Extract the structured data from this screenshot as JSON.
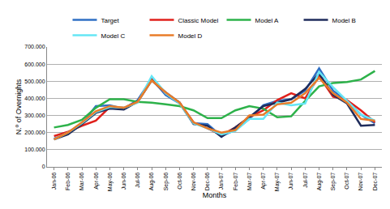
{
  "chart_data": {
    "type": "line",
    "x_label": "Months",
    "y_label": "N.º of Overnights",
    "categories": [
      "Jan-06",
      "Feb-06",
      "Mar-06",
      "Apr-06",
      "May-06",
      "Jun-06",
      "Jul-06",
      "Aug-06",
      "Sep-06",
      "Oct-06",
      "Nov-06",
      "Dec-06",
      "Jan-07",
      "Feb-07",
      "Mar-07",
      "Apr-07",
      "May-07",
      "Jun-07",
      "Jul-07",
      "Aug-07",
      "Sep-07",
      "Oct-07",
      "Nov-07",
      "Dec-07"
    ],
    "series": [
      {
        "name": "Target",
        "color": "#2f6fc4",
        "values": [
          165000,
          195000,
          250000,
          355000,
          360000,
          340000,
          390000,
          515000,
          420000,
          370000,
          255000,
          250000,
          180000,
          215000,
          280000,
          360000,
          385000,
          395000,
          445000,
          575000,
          445000,
          385000,
          305000,
          255000
        ]
      },
      {
        "name": "Classic Model",
        "color": "#e0201b",
        "values": [
          180000,
          205000,
          240000,
          270000,
          350000,
          345000,
          380000,
          510000,
          430000,
          375000,
          260000,
          225000,
          185000,
          230000,
          290000,
          330000,
          390000,
          430000,
          400000,
          530000,
          410000,
          390000,
          330000,
          260000
        ]
      },
      {
        "name": "Model A",
        "color": "#2db24a",
        "values": [
          230000,
          245000,
          275000,
          345000,
          395000,
          395000,
          380000,
          375000,
          365000,
          355000,
          330000,
          285000,
          285000,
          330000,
          355000,
          340000,
          290000,
          295000,
          385000,
          470000,
          490000,
          495000,
          510000,
          560000
        ]
      },
      {
        "name": "Model B",
        "color": "#1f2c5c",
        "values": [
          160000,
          190000,
          250000,
          315000,
          340000,
          335000,
          380000,
          505000,
          435000,
          375000,
          250000,
          240000,
          175000,
          230000,
          290000,
          355000,
          375000,
          395000,
          455000,
          545000,
          420000,
          370000,
          240000,
          245000
        ]
      },
      {
        "name": "Model C",
        "color": "#66e6f5",
        "values": [
          160000,
          200000,
          255000,
          320000,
          350000,
          345000,
          375000,
          530000,
          430000,
          370000,
          255000,
          225000,
          190000,
          210000,
          280000,
          280000,
          375000,
          360000,
          370000,
          555000,
          465000,
          385000,
          305000,
          270000
        ]
      },
      {
        "name": "Model D",
        "color": "#e87c2a",
        "values": [
          160000,
          200000,
          260000,
          325000,
          355000,
          345000,
          380000,
          505000,
          435000,
          375000,
          260000,
          225000,
          200000,
          215000,
          300000,
          305000,
          365000,
          375000,
          430000,
          520000,
          430000,
          375000,
          280000,
          270000
        ]
      }
    ],
    "ylim": [
      0,
      700000
    ],
    "yticks": [
      0,
      {
        "value": 100000,
        "label": "100.000"
      },
      {
        "value": 200000,
        "label": "200.000"
      },
      {
        "value": 300000,
        "label": "300.000"
      },
      {
        "value": 400000,
        "label": "400.000"
      },
      {
        "value": 500000,
        "label": "500.000"
      },
      {
        "value": 600000,
        "label": "600.000"
      },
      {
        "value": 700000,
        "label": "700.000"
      }
    ],
    "grid": true,
    "legend": "top"
  }
}
